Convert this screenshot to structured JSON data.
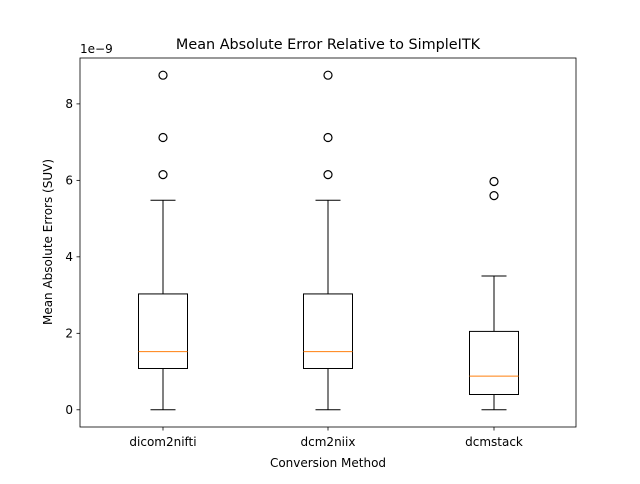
{
  "chart_data": {
    "type": "box",
    "title": "Mean Absolute Error Relative to SimpleITK",
    "xlabel": "Conversion Method",
    "ylabel": "Mean Absolute Errors (SUV)",
    "y_scale_label": "1e−9",
    "ylim": [
      -0.45,
      9.2
    ],
    "yticks": [
      0,
      2,
      4,
      6,
      8
    ],
    "ytick_labels": [
      "0",
      "2",
      "4",
      "6",
      "8"
    ],
    "grid": false,
    "categories": [
      "dicom2nifti",
      "dcm2niix",
      "dcmstack"
    ],
    "boxes": [
      {
        "name": "dicom2nifti",
        "whisker_low": 0.0,
        "q1": 1.08,
        "median": 1.52,
        "q3": 3.03,
        "whisker_high": 5.48,
        "outliers": [
          6.15,
          7.12,
          8.75
        ]
      },
      {
        "name": "dcm2niix",
        "whisker_low": 0.0,
        "q1": 1.08,
        "median": 1.52,
        "q3": 3.03,
        "whisker_high": 5.48,
        "outliers": [
          6.15,
          7.12,
          8.75
        ]
      },
      {
        "name": "dcmstack",
        "whisker_low": 0.0,
        "q1": 0.4,
        "median": 0.88,
        "q3": 2.05,
        "whisker_high": 3.5,
        "outliers": [
          5.6,
          5.97
        ]
      }
    ],
    "colors": {
      "box": "#000000",
      "median": "#ff7f0e",
      "outlier": "#000000",
      "axes": "#000000"
    }
  }
}
